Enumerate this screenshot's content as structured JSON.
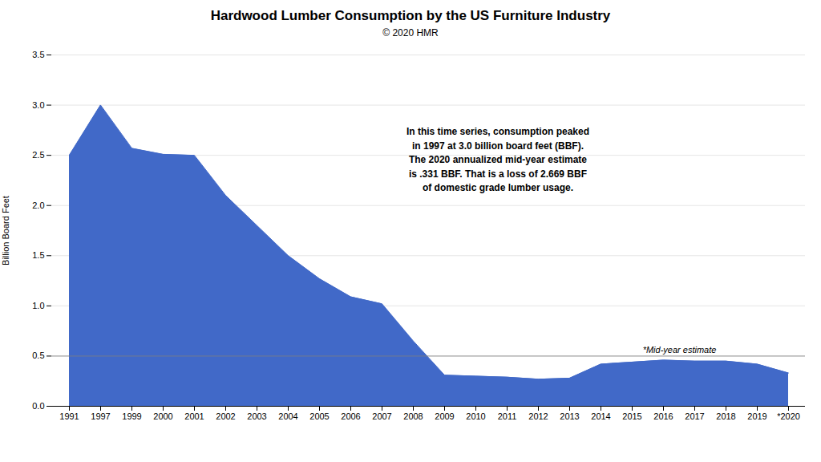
{
  "chart_data": {
    "type": "area",
    "title": "Hardwood Lumber Consumption by the US Furniture Industry",
    "subtitle": "© 2020 HMR",
    "ylabel": "Billion Board Feet",
    "color": "#4169C8",
    "categories": [
      "1991",
      "1997",
      "1999",
      "2000",
      "2001",
      "2002",
      "2003",
      "2004",
      "2005",
      "2006",
      "2007",
      "2008",
      "2009",
      "2010",
      "2011",
      "2012",
      "2013",
      "2014",
      "2015",
      "2016",
      "2017",
      "2018",
      "2019",
      "*2020"
    ],
    "values": [
      2.5,
      3.0,
      2.57,
      2.51,
      2.5,
      2.1,
      1.8,
      1.5,
      1.27,
      1.09,
      1.02,
      0.65,
      0.31,
      0.3,
      0.29,
      0.27,
      0.28,
      0.42,
      0.44,
      0.46,
      0.45,
      0.45,
      0.42,
      0.331
    ],
    "ylim": [
      0.0,
      3.5
    ],
    "yticks": [
      {
        "value": 0.0,
        "label": "0.0"
      },
      0.5,
      {
        "value": 1.0,
        "label": "1.0"
      },
      1.5,
      {
        "value": 2.0,
        "label": "2.0"
      },
      2.5,
      {
        "value": 3.0,
        "label": "3.0"
      },
      3.5
    ],
    "grid": true,
    "hline": 0.5,
    "annotations": [
      "In this time series, consumption peaked\nin 1997 at 3.0 billion board feet (BBF).\nThe 2020 annualized mid-year estimate\nis .331 BBF. That is a loss of 2.669 BBF\nof domestic grade lumber usage.",
      "*Mid-year estimate"
    ]
  }
}
